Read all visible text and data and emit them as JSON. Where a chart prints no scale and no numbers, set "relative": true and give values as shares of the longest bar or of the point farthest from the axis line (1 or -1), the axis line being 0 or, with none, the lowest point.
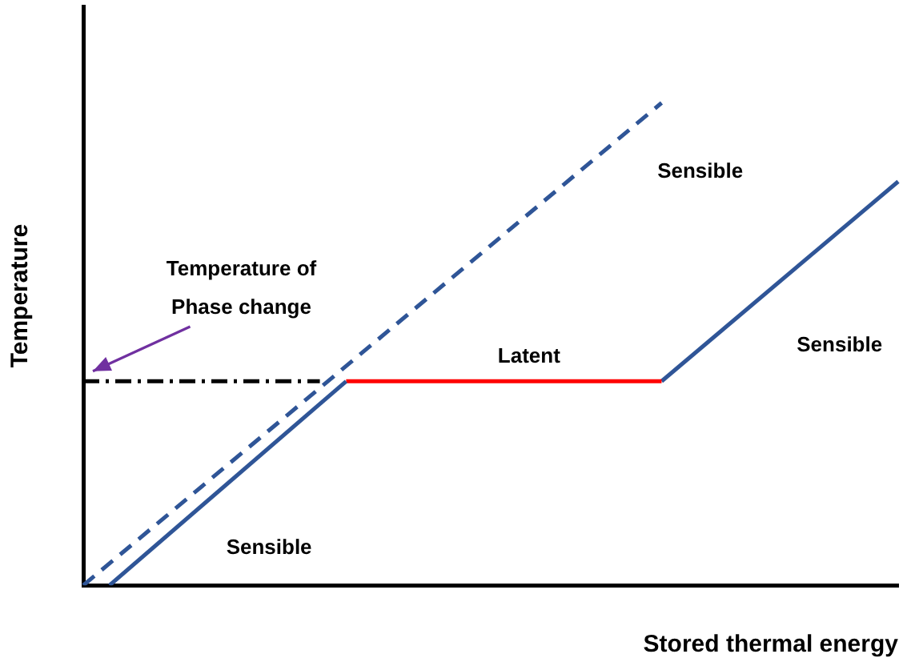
{
  "chart_data": {
    "type": "line",
    "relative": true,
    "xlabel": "Stored thermal energy",
    "ylabel": "Temperature",
    "grid": false,
    "legend": false,
    "marker": "none",
    "categories": [
      null,
      null,
      null,
      null,
      null,
      null,
      null,
      null,
      null,
      null,
      null,
      null,
      null,
      null,
      null,
      null,
      null,
      null,
      null,
      null,
      null,
      null,
      null,
      null,
      null,
      null,
      null,
      null,
      null,
      null,
      null,
      null
    ],
    "series": [
      {
        "color": "#2f5597",
        "line_style": "dashed",
        "values": [
          0,
          null,
          null,
          null,
          null,
          null,
          null,
          null,
          null,
          null,
          null,
          null,
          null,
          null,
          null,
          null,
          null,
          null,
          null,
          null,
          null,
          null,
          1,
          null,
          null,
          null,
          null,
          null,
          null,
          null,
          null,
          null
        ]
      },
      {
        "color": "#000000",
        "line_style": "dashdot",
        "values": [
          0.423,
          null,
          null,
          null,
          null,
          null,
          null,
          null,
          null,
          0.423,
          null,
          null,
          null,
          null,
          null,
          null,
          null,
          null,
          null,
          null,
          null,
          null,
          null,
          null,
          null,
          null,
          null,
          null,
          null,
          null,
          null,
          null
        ]
      },
      {
        "color": "#2f5597",
        "line_style": "solid",
        "values": [
          null,
          0,
          null,
          null,
          null,
          null,
          null,
          null,
          null,
          null,
          0.423,
          null,
          null,
          null,
          null,
          null,
          null,
          null,
          null,
          null,
          null,
          null,
          null,
          null,
          null,
          null,
          null,
          null,
          null,
          null,
          null,
          null
        ]
      },
      {
        "color": "#ff0000",
        "line_style": "solid",
        "values": [
          null,
          null,
          null,
          null,
          null,
          null,
          null,
          null,
          null,
          null,
          0.423,
          null,
          null,
          null,
          null,
          null,
          null,
          null,
          null,
          null,
          null,
          null,
          0.423,
          null,
          null,
          null,
          null,
          null,
          null,
          null,
          null,
          null
        ]
      },
      {
        "color": "#2f5597",
        "line_style": "solid",
        "values": [
          null,
          null,
          null,
          null,
          null,
          null,
          null,
          null,
          null,
          null,
          null,
          null,
          null,
          null,
          null,
          null,
          null,
          null,
          null,
          null,
          null,
          null,
          0.423,
          null,
          null,
          null,
          null,
          null,
          null,
          null,
          null,
          0.837
        ]
      }
    ],
    "annotations": [
      "Temperature of\nPhase change",
      "Sensible",
      "Latent",
      "Sensible",
      "Sensible"
    ]
  }
}
